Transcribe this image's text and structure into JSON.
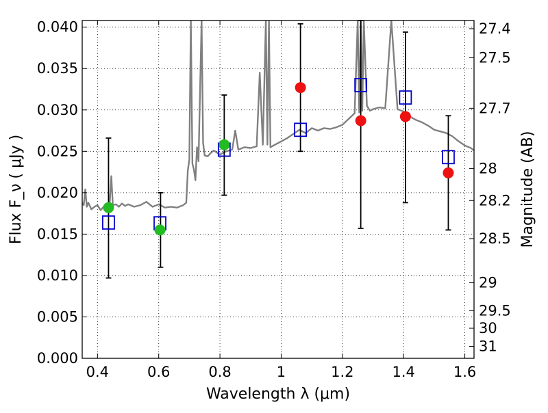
{
  "chart_data": {
    "type": "scatter",
    "xlabel": "Wavelength  λ (μm)",
    "ylabel": "Flux  F_ν  ( μJy )",
    "ylabel_right": "Magnitude (AB)",
    "xlim": [
      0.35,
      1.63
    ],
    "ylim": [
      0.0,
      0.0408
    ],
    "grid": true,
    "x_ticks": [
      {
        "value": 0.4,
        "label": "0.4"
      },
      {
        "value": 0.6,
        "label": "0.6"
      },
      {
        "value": 0.8,
        "label": "0.8"
      },
      {
        "value": 1.0,
        "label": "1"
      },
      {
        "value": 1.2,
        "label": "1.2"
      },
      {
        "value": 1.4,
        "label": "1.4"
      },
      {
        "value": 1.6,
        "label": "1.6"
      }
    ],
    "y_ticks": [
      {
        "value": 0.0,
        "label": "0.000"
      },
      {
        "value": 0.005,
        "label": "0.005"
      },
      {
        "value": 0.01,
        "label": "0.010"
      },
      {
        "value": 0.015,
        "label": "0.015"
      },
      {
        "value": 0.02,
        "label": "0.020"
      },
      {
        "value": 0.025,
        "label": "0.025"
      },
      {
        "value": 0.03,
        "label": "0.030"
      },
      {
        "value": 0.035,
        "label": "0.035"
      },
      {
        "value": 0.04,
        "label": "0.040"
      }
    ],
    "right_ticks": [
      {
        "mag": 27.4,
        "label": "27.4"
      },
      {
        "mag": 27.5,
        "label": "27.5"
      },
      {
        "mag": 27.7,
        "label": "27.7"
      },
      {
        "mag": 28,
        "label": "28"
      },
      {
        "mag": 28.2,
        "label": "28.2"
      },
      {
        "mag": 28.5,
        "label": "28.5"
      },
      {
        "mag": 29,
        "label": "29"
      },
      {
        "mag": 29.5,
        "label": "29.5"
      },
      {
        "mag": 30,
        "label": "30"
      },
      {
        "mag": 31,
        "label": "31"
      }
    ],
    "series": [
      {
        "kind": "line",
        "color": "#808080",
        "x": [
          0.35,
          0.355,
          0.36,
          0.365,
          0.37,
          0.38,
          0.39,
          0.4,
          0.41,
          0.42,
          0.43,
          0.44,
          0.445,
          0.45,
          0.46,
          0.47,
          0.48,
          0.49,
          0.5,
          0.52,
          0.54,
          0.56,
          0.58,
          0.6,
          0.62,
          0.64,
          0.66,
          0.68,
          0.69,
          0.695,
          0.7,
          0.705,
          0.71,
          0.715,
          0.72,
          0.725,
          0.73,
          0.74,
          0.745,
          0.75,
          0.76,
          0.77,
          0.78,
          0.8,
          0.82,
          0.84,
          0.85,
          0.86,
          0.88,
          0.9,
          0.92,
          0.93,
          0.94,
          0.95,
          0.955,
          0.96,
          0.965,
          0.98,
          1.0,
          1.02,
          1.04,
          1.06,
          1.08,
          1.1,
          1.12,
          1.14,
          1.16,
          1.18,
          1.2,
          1.22,
          1.24,
          1.25,
          1.255,
          1.26,
          1.265,
          1.27,
          1.28,
          1.29,
          1.3,
          1.32,
          1.34,
          1.36,
          1.38,
          1.4,
          1.42,
          1.44,
          1.46,
          1.48,
          1.5,
          1.52,
          1.54,
          1.56,
          1.58,
          1.6,
          1.62,
          1.63
        ],
        "y": [
          0.0188,
          0.0185,
          0.0204,
          0.0183,
          0.0188,
          0.018,
          0.0183,
          0.0185,
          0.0179,
          0.0183,
          0.0181,
          0.0188,
          0.022,
          0.0185,
          0.0186,
          0.0183,
          0.0187,
          0.0184,
          0.0186,
          0.0183,
          0.0185,
          0.0189,
          0.0183,
          0.0186,
          0.0182,
          0.0183,
          0.0182,
          0.0185,
          0.0188,
          0.0227,
          0.024,
          0.0408,
          0.0235,
          0.0228,
          0.0215,
          0.0255,
          0.0238,
          0.0408,
          0.026,
          0.0245,
          0.0244,
          0.0248,
          0.0251,
          0.0246,
          0.025,
          0.0252,
          0.0275,
          0.0252,
          0.0255,
          0.0254,
          0.0256,
          0.0345,
          0.0258,
          0.0408,
          0.0258,
          0.0408,
          0.0255,
          0.0258,
          0.0262,
          0.0266,
          0.0271,
          0.0276,
          0.0272,
          0.0278,
          0.0275,
          0.0278,
          0.0277,
          0.0279,
          0.0282,
          0.0289,
          0.0296,
          0.0408,
          0.0297,
          0.0408,
          0.0299,
          0.0408,
          0.0305,
          0.0299,
          0.0301,
          0.0303,
          0.0302,
          0.0408,
          0.0301,
          0.0298,
          0.0292,
          0.0288,
          0.0285,
          0.0281,
          0.0276,
          0.0274,
          0.0272,
          0.0268,
          0.0262,
          0.0257,
          0.0254,
          0.0251
        ]
      },
      {
        "kind": "errorbar",
        "color": "#000000",
        "points": [
          {
            "x": 0.436,
            "low": 0.0097,
            "high": 0.0266
          },
          {
            "x": 0.606,
            "low": 0.011,
            "high": 0.02
          },
          {
            "x": 0.814,
            "low": 0.0197,
            "high": 0.0318
          },
          {
            "x": 1.063,
            "low": 0.025,
            "high": 0.0404
          },
          {
            "x": 1.26,
            "low": 0.0157,
            "high": 0.0408
          },
          {
            "x": 1.406,
            "low": 0.0188,
            "high": 0.0394
          },
          {
            "x": 1.546,
            "low": 0.0155,
            "high": 0.0293
          }
        ]
      },
      {
        "kind": "open-square",
        "color": "#0000cc",
        "points": [
          {
            "x": 0.436,
            "y": 0.0164
          },
          {
            "x": 0.604,
            "y": 0.0163
          },
          {
            "x": 0.814,
            "y": 0.0252
          },
          {
            "x": 1.063,
            "y": 0.0276
          },
          {
            "x": 1.26,
            "y": 0.033
          },
          {
            "x": 1.406,
            "y": 0.0315
          },
          {
            "x": 1.546,
            "y": 0.0243
          }
        ]
      },
      {
        "kind": "filled-circle",
        "color": "#22bb22",
        "points": [
          {
            "x": 0.436,
            "y": 0.0182
          },
          {
            "x": 0.604,
            "y": 0.0155
          },
          {
            "x": 0.814,
            "y": 0.0258
          }
        ]
      },
      {
        "kind": "filled-circle",
        "color": "#ee1111",
        "points": [
          {
            "x": 1.063,
            "y": 0.0327
          },
          {
            "x": 1.26,
            "y": 0.0287
          },
          {
            "x": 1.406,
            "y": 0.0292
          },
          {
            "x": 1.546,
            "y": 0.0224
          }
        ]
      }
    ]
  }
}
